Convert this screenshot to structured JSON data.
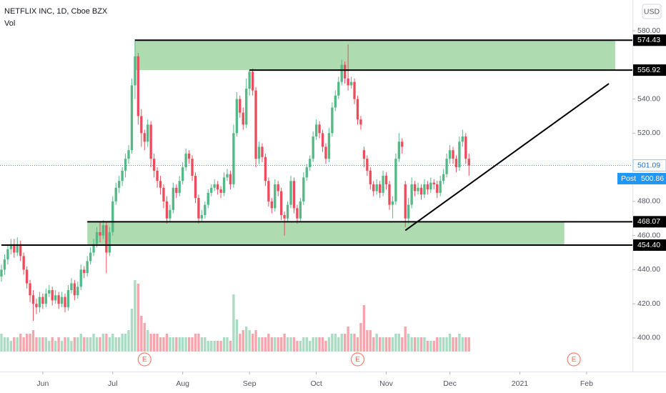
{
  "chart_data": {
    "type": "candlestick",
    "title": "NETFLIX INC, 1D, Cboe BZX",
    "volume_title": "Vol",
    "currency": "USD",
    "up_color": "#53b987",
    "down_color": "#eb4d5c",
    "zone_color": "#4caf50",
    "ylim": [
      380.3,
      598
    ],
    "yticks": [
      {
        "value": 400,
        "label": "400.00"
      },
      {
        "value": 420,
        "label": "420.00"
      },
      {
        "value": 440,
        "label": "440.00"
      },
      {
        "value": 460,
        "label": "460.00"
      },
      {
        "value": 480,
        "label": "480.00"
      },
      {
        "value": 520,
        "label": "520.00"
      },
      {
        "value": 540,
        "label": "540.00"
      },
      {
        "value": 580,
        "label": "580.00"
      }
    ],
    "xlim": [
      -0.45,
      198.4
    ],
    "xticks": [
      {
        "value": 13,
        "label": "Jun"
      },
      {
        "value": 35,
        "label": "Jul"
      },
      {
        "value": 57,
        "label": "Aug"
      },
      {
        "value": 78,
        "label": "Sep"
      },
      {
        "value": 99,
        "label": "Oct"
      },
      {
        "value": 121,
        "label": "Nov"
      },
      {
        "value": 141,
        "label": "Dec"
      },
      {
        "value": 163,
        "label": "2021"
      },
      {
        "value": 184,
        "label": "Feb"
      }
    ],
    "volume_lim": [
      0,
      60
    ],
    "candles": [
      [
        436,
        443,
        433,
        440
      ],
      [
        440,
        449,
        437,
        446
      ],
      [
        446,
        455,
        443,
        452
      ],
      [
        452,
        458,
        449,
        455
      ],
      [
        455,
        458,
        447,
        450
      ],
      [
        450,
        459,
        448,
        455
      ],
      [
        455,
        457,
        445,
        448
      ],
      [
        448,
        450,
        437,
        440
      ],
      [
        440,
        442,
        429,
        432
      ],
      [
        432,
        434,
        421,
        425
      ],
      [
        425,
        428,
        410,
        420
      ],
      [
        420,
        423,
        414,
        418
      ],
      [
        418,
        427,
        415,
        424
      ],
      [
        424,
        426,
        417,
        420
      ],
      [
        420,
        429,
        418,
        426
      ],
      [
        426,
        431,
        424,
        428
      ],
      [
        428,
        430,
        419,
        422
      ],
      [
        422,
        428,
        420,
        425
      ],
      [
        425,
        427,
        417,
        420
      ],
      [
        420,
        427,
        418,
        424
      ],
      [
        424,
        426,
        415,
        418
      ],
      [
        418,
        431,
        416,
        428
      ],
      [
        428,
        435,
        426,
        432
      ],
      [
        432,
        434,
        422,
        425
      ],
      [
        425,
        433,
        423,
        430
      ],
      [
        430,
        443,
        428,
        440
      ],
      [
        440,
        442,
        435,
        438
      ],
      [
        438,
        448,
        436,
        445
      ],
      [
        445,
        453,
        443,
        450
      ],
      [
        450,
        458,
        448,
        455
      ],
      [
        455,
        465,
        453,
        462
      ],
      [
        462,
        468,
        456,
        460
      ],
      [
        460,
        469,
        458,
        466
      ],
      [
        466,
        468,
        438,
        450
      ],
      [
        450,
        465,
        448,
        462
      ],
      [
        462,
        483,
        460,
        480
      ],
      [
        480,
        491,
        478,
        488
      ],
      [
        488,
        495,
        485,
        492
      ],
      [
        492,
        500,
        489,
        498
      ],
      [
        498,
        508,
        494,
        505
      ],
      [
        505,
        513,
        502,
        510
      ],
      [
        510,
        552,
        508,
        548
      ],
      [
        548,
        575,
        540,
        565
      ],
      [
        565,
        567,
        525,
        530
      ],
      [
        530,
        534,
        512,
        520
      ],
      [
        520,
        522,
        510,
        515
      ],
      [
        515,
        528,
        512,
        525
      ],
      [
        525,
        527,
        500,
        505
      ],
      [
        505,
        508,
        494,
        498
      ],
      [
        498,
        500,
        488,
        492
      ],
      [
        492,
        495,
        484,
        488
      ],
      [
        488,
        490,
        476,
        480
      ],
      [
        480,
        483,
        467,
        470
      ],
      [
        470,
        478,
        468,
        475
      ],
      [
        475,
        491,
        473,
        488
      ],
      [
        488,
        490,
        482,
        485
      ],
      [
        485,
        495,
        483,
        492
      ],
      [
        492,
        503,
        490,
        500
      ],
      [
        500,
        511,
        498,
        508
      ],
      [
        508,
        510,
        502,
        505
      ],
      [
        505,
        507,
        492,
        495
      ],
      [
        495,
        497,
        479,
        482
      ],
      [
        482,
        484,
        467,
        470
      ],
      [
        470,
        475,
        468,
        472
      ],
      [
        472,
        480,
        470,
        478
      ],
      [
        478,
        487,
        476,
        485
      ],
      [
        485,
        490,
        483,
        488
      ],
      [
        488,
        493,
        486,
        490
      ],
      [
        490,
        492,
        484,
        487
      ],
      [
        487,
        489,
        482,
        485
      ],
      [
        485,
        497,
        483,
        494
      ],
      [
        494,
        499,
        492,
        496
      ],
      [
        496,
        498,
        487,
        490
      ],
      [
        490,
        525,
        488,
        520
      ],
      [
        520,
        544,
        518,
        540
      ],
      [
        540,
        542,
        529,
        532
      ],
      [
        532,
        535,
        522,
        525
      ],
      [
        525,
        552,
        523,
        546
      ],
      [
        546,
        557,
        542,
        556
      ],
      [
        556,
        558,
        542,
        545
      ],
      [
        545,
        547,
        500,
        505
      ],
      [
        505,
        515,
        502,
        512
      ],
      [
        512,
        514,
        503,
        506
      ],
      [
        506,
        508,
        489,
        492
      ],
      [
        492,
        494,
        477,
        480
      ],
      [
        480,
        482,
        473,
        476
      ],
      [
        476,
        493,
        474,
        490
      ],
      [
        490,
        492,
        483,
        486
      ],
      [
        486,
        488,
        469,
        472
      ],
      [
        472,
        474,
        460,
        470
      ],
      [
        470,
        480,
        468,
        478
      ],
      [
        478,
        495,
        476,
        492
      ],
      [
        492,
        494,
        473,
        476
      ],
      [
        476,
        478,
        467,
        470
      ],
      [
        470,
        482,
        468,
        480
      ],
      [
        480,
        497,
        478,
        494
      ],
      [
        494,
        502,
        492,
        500
      ],
      [
        500,
        507,
        498,
        505
      ],
      [
        505,
        521,
        503,
        518
      ],
      [
        518,
        528,
        516,
        525
      ],
      [
        525,
        527,
        517,
        520
      ],
      [
        520,
        522,
        509,
        512
      ],
      [
        512,
        514,
        502,
        505
      ],
      [
        505,
        523,
        503,
        520
      ],
      [
        520,
        538,
        518,
        535
      ],
      [
        535,
        545,
        533,
        542
      ],
      [
        542,
        553,
        540,
        550
      ],
      [
        550,
        563,
        548,
        560
      ],
      [
        560,
        562,
        549,
        552
      ],
      [
        552,
        572,
        545,
        548
      ],
      [
        548,
        553,
        546,
        550
      ],
      [
        550,
        552,
        537,
        540
      ],
      [
        540,
        542,
        525,
        528
      ],
      [
        528,
        530,
        522,
        525
      ],
      [
        510,
        512,
        500,
        505
      ],
      [
        505,
        507,
        495,
        498
      ],
      [
        498,
        500,
        487,
        490
      ],
      [
        490,
        492,
        483,
        486
      ],
      [
        486,
        493,
        484,
        490
      ],
      [
        490,
        492,
        482,
        485
      ],
      [
        485,
        498,
        483,
        495
      ],
      [
        495,
        497,
        487,
        490
      ],
      [
        490,
        492,
        475,
        478
      ],
      [
        478,
        483,
        470,
        480
      ],
      [
        480,
        508,
        478,
        505
      ],
      [
        505,
        520,
        503,
        515
      ],
      [
        515,
        517,
        508,
        512
      ],
      [
        490,
        492,
        465,
        470
      ],
      [
        470,
        482,
        467,
        478
      ],
      [
        478,
        494,
        476,
        490
      ],
      [
        490,
        492,
        483,
        486
      ],
      [
        486,
        491,
        484,
        488
      ],
      [
        488,
        490,
        481,
        484
      ],
      [
        484,
        493,
        482,
        490
      ],
      [
        490,
        492,
        484,
        487
      ],
      [
        487,
        494,
        485,
        491
      ],
      [
        491,
        493,
        487,
        490
      ],
      [
        490,
        492,
        482,
        485
      ],
      [
        485,
        495,
        483,
        492
      ],
      [
        492,
        499,
        490,
        496
      ],
      [
        496,
        508,
        494,
        505
      ],
      [
        505,
        513,
        502,
        510
      ],
      [
        510,
        512,
        502,
        505
      ],
      [
        505,
        507,
        497,
        500
      ],
      [
        500,
        518,
        498,
        515
      ],
      [
        515,
        522,
        512,
        518
      ],
      [
        518,
        520,
        502,
        505
      ],
      [
        505,
        508,
        495,
        501.09
      ]
    ],
    "volume": [
      5,
      4,
      4,
      3,
      4,
      4,
      5,
      4,
      5,
      5,
      6,
      4,
      4,
      4,
      4,
      3,
      4,
      3,
      4,
      3,
      4,
      4,
      3,
      4,
      4,
      5,
      4,
      4,
      4,
      5,
      4,
      4,
      5,
      5,
      4,
      5,
      4,
      4,
      5,
      5,
      6,
      12,
      20,
      19,
      10,
      8,
      6,
      5,
      5,
      5,
      4,
      4,
      5,
      4,
      4,
      4,
      4,
      4,
      4,
      4,
      4,
      5,
      5,
      4,
      4,
      3,
      3,
      3,
      3,
      3,
      4,
      4,
      3,
      16,
      9,
      5,
      6,
      7,
      6,
      5,
      6,
      4,
      4,
      4,
      5,
      4,
      4,
      4,
      4,
      5,
      4,
      4,
      4,
      3,
      3,
      4,
      4,
      3,
      4,
      4,
      4,
      4,
      3,
      4,
      5,
      5,
      4,
      5,
      5,
      7,
      5,
      5,
      4,
      8,
      13,
      6,
      6,
      4,
      5,
      4,
      4,
      4,
      4,
      4,
      5,
      5,
      4,
      7,
      5,
      4,
      4,
      4,
      4,
      4,
      3,
      3,
      3,
      4,
      4,
      4,
      4,
      5,
      4,
      4,
      5,
      4,
      4,
      4
    ],
    "levels": [
      {
        "value": 574.43,
        "label": "574.43",
        "from": 42
      },
      {
        "value": 556.92,
        "label": "556.92",
        "from": 78
      },
      {
        "value": 468.07,
        "label": "468.07",
        "from": 27
      },
      {
        "value": 454.4,
        "label": "454.40",
        "from": 0
      }
    ],
    "zones": [
      {
        "range": [
          556.92,
          574.43
        ],
        "from": 42,
        "to": 193
      },
      {
        "range": [
          454.4,
          468.07
        ],
        "from": 27,
        "to": 177
      }
    ],
    "trendline": {
      "from": [
        127,
        463
      ],
      "to": [
        191,
        549
      ]
    },
    "last_price": {
      "value": 501.09,
      "label": "501.09"
    },
    "post_price": {
      "name": "Post",
      "value": 500.86,
      "label": "500.86"
    },
    "earnings": [
      {
        "label": "E",
        "index": 45
      },
      {
        "label": "E",
        "index": 112
      },
      {
        "label": "E",
        "index": 180
      }
    ]
  }
}
